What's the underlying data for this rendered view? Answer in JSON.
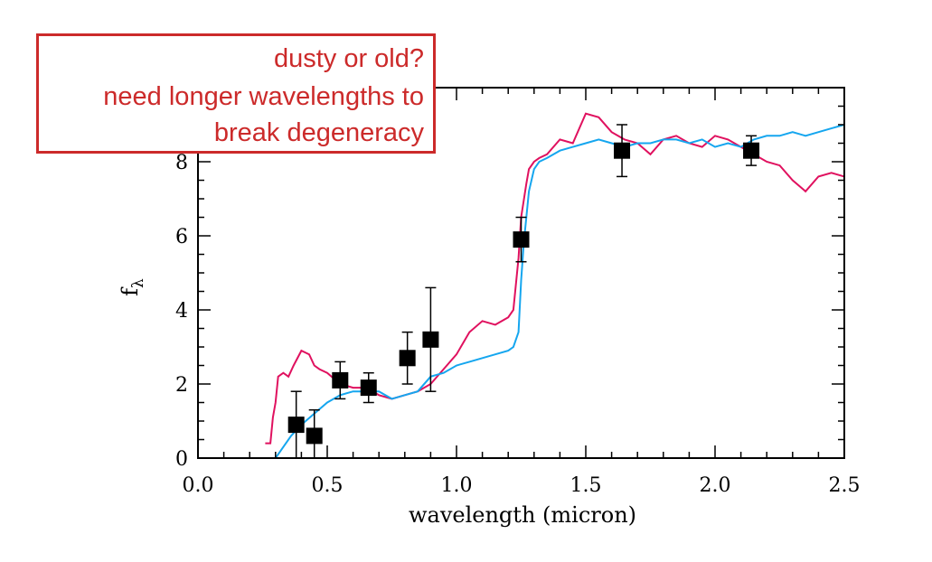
{
  "chart_data": {
    "type": "line",
    "xlabel": "wavelength (micron)",
    "ylabel": "f",
    "ylabel_subscript": "λ",
    "xlim": [
      0.0,
      2.5
    ],
    "ylim": [
      0,
      10
    ],
    "x_ticks": [
      "0.0",
      "0.5",
      "1.0",
      "1.5",
      "2.0",
      "2.5"
    ],
    "y_ticks": [
      "0",
      "2",
      "4",
      "6",
      "8"
    ],
    "x_tick_values": [
      0.0,
      0.5,
      1.0,
      1.5,
      2.0,
      2.5
    ],
    "y_tick_values": [
      0,
      2,
      4,
      6,
      8
    ],
    "grid": false,
    "series": [
      {
        "color": "#e0115f",
        "x": [
          0.26,
          0.28,
          0.29,
          0.3,
          0.31,
          0.33,
          0.35,
          0.37,
          0.4,
          0.43,
          0.45,
          0.47,
          0.5,
          0.55,
          0.6,
          0.65,
          0.7,
          0.75,
          0.8,
          0.85,
          0.9,
          0.95,
          1.0,
          1.05,
          1.1,
          1.15,
          1.2,
          1.22,
          1.24,
          1.25,
          1.27,
          1.28,
          1.3,
          1.32,
          1.35,
          1.4,
          1.45,
          1.5,
          1.55,
          1.6,
          1.65,
          1.7,
          1.75,
          1.8,
          1.85,
          1.9,
          1.95,
          2.0,
          2.05,
          2.1,
          2.15,
          2.2,
          2.25,
          2.3,
          2.35,
          2.4,
          2.45,
          2.5
        ],
        "y": [
          0.4,
          0.4,
          1.1,
          1.5,
          2.2,
          2.3,
          2.2,
          2.5,
          2.9,
          2.8,
          2.5,
          2.4,
          2.3,
          2.0,
          1.9,
          1.9,
          1.7,
          1.6,
          1.7,
          1.8,
          2.0,
          2.4,
          2.8,
          3.4,
          3.7,
          3.6,
          3.8,
          4.0,
          5.4,
          6.5,
          7.4,
          7.8,
          8.0,
          8.1,
          8.2,
          8.6,
          8.5,
          9.3,
          9.2,
          8.8,
          8.6,
          8.5,
          8.2,
          8.6,
          8.7,
          8.5,
          8.4,
          8.7,
          8.6,
          8.4,
          8.2,
          8.0,
          7.9,
          7.5,
          7.2,
          7.6,
          7.7,
          7.6
        ]
      },
      {
        "color": "#15a6ef",
        "x": [
          0.3,
          0.33,
          0.36,
          0.4,
          0.45,
          0.5,
          0.55,
          0.6,
          0.65,
          0.7,
          0.75,
          0.8,
          0.85,
          0.9,
          0.95,
          1.0,
          1.05,
          1.1,
          1.15,
          1.2,
          1.22,
          1.24,
          1.25,
          1.26,
          1.28,
          1.3,
          1.32,
          1.35,
          1.4,
          1.45,
          1.5,
          1.55,
          1.6,
          1.65,
          1.7,
          1.75,
          1.8,
          1.85,
          1.9,
          1.95,
          2.0,
          2.05,
          2.1,
          2.15,
          2.2,
          2.25,
          2.3,
          2.35,
          2.4,
          2.45,
          2.5
        ],
        "y": [
          0.0,
          0.3,
          0.6,
          0.9,
          1.2,
          1.5,
          1.7,
          1.8,
          1.8,
          1.8,
          1.6,
          1.7,
          1.8,
          2.2,
          2.3,
          2.5,
          2.6,
          2.7,
          2.8,
          2.9,
          3.0,
          3.4,
          4.8,
          5.8,
          7.2,
          7.8,
          8.0,
          8.1,
          8.3,
          8.4,
          8.5,
          8.6,
          8.5,
          8.4,
          8.5,
          8.5,
          8.6,
          8.6,
          8.5,
          8.6,
          8.4,
          8.5,
          8.4,
          8.6,
          8.7,
          8.7,
          8.8,
          8.7,
          8.8,
          8.9,
          9.0
        ]
      }
    ],
    "points": {
      "x": [
        0.38,
        0.45,
        0.55,
        0.66,
        0.81,
        0.9,
        1.25,
        1.64,
        2.14
      ],
      "y": [
        0.9,
        0.6,
        2.1,
        1.9,
        2.7,
        3.2,
        5.9,
        8.3,
        8.3
      ],
      "err": [
        0.9,
        0.7,
        0.5,
        0.4,
        0.7,
        1.4,
        0.6,
        0.7,
        0.4
      ]
    },
    "annotation": [
      "dusty or old?",
      "need longer wavelengths to",
      "break degeneracy"
    ],
    "colors": {
      "annotation": "#cc2a2a",
      "axis": "#000000",
      "markers": "#000000"
    }
  }
}
